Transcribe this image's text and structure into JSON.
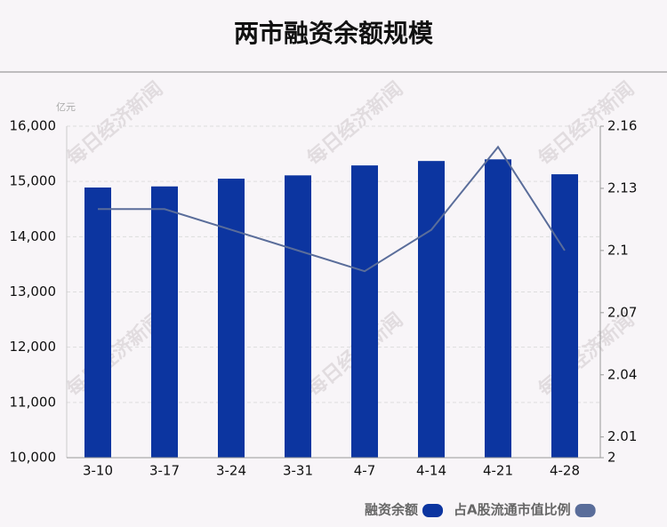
{
  "chart_data": {
    "type": "bar",
    "title": "两市融资余额规模",
    "y_unit": "亿元",
    "watermark": "每日经济新闻",
    "categories": [
      "3-10",
      "3-17",
      "3-24",
      "3-31",
      "4-7",
      "4-14",
      "4-21",
      "4-28"
    ],
    "series": [
      {
        "name": "融资余额",
        "type": "bar",
        "color": "#0c35a0",
        "values": [
          14890,
          14910,
          15050,
          15110,
          15290,
          15370,
          15400,
          15130
        ]
      },
      {
        "name": "占A股流通市值比例",
        "type": "line",
        "axis": "y2",
        "color": "#5a6d9a",
        "values": [
          2.12,
          2.12,
          2.11,
          2.1,
          2.09,
          2.11,
          2.15,
          2.1
        ]
      }
    ],
    "ylim": [
      10000,
      16000
    ],
    "yticks": [
      {
        "value": 10000,
        "label": "10,000"
      },
      {
        "value": 11000,
        "label": "11,000"
      },
      {
        "value": 12000,
        "label": "12,000"
      },
      {
        "value": 13000,
        "label": "13,000"
      },
      {
        "value": 14000,
        "label": "14,000"
      },
      {
        "value": 15000,
        "label": "15,000"
      },
      {
        "value": 16000,
        "label": "16,000"
      }
    ],
    "y2lim": [
      2,
      2.16
    ],
    "y2ticks": [
      2,
      2.01,
      2.04,
      2.07,
      2.1,
      2.13,
      2.16
    ],
    "grid": true,
    "legend": "bottom-right"
  }
}
